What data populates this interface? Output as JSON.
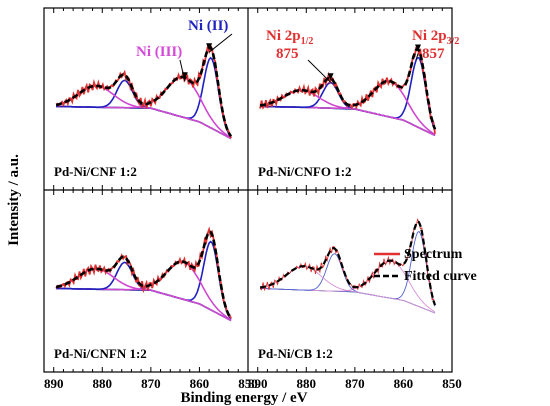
{
  "figure": {
    "xlabel": "Binding energy / eV",
    "ylabel": "Intensity / a.u."
  },
  "chart_data": {
    "type": "line",
    "xlabel": "Binding energy / eV",
    "ylabel": "Intensity / a.u.",
    "xlim": [
      892,
      850
    ],
    "x_ticks": [
      890,
      880,
      870,
      860,
      850
    ],
    "x_reversed": true,
    "panels": [
      {
        "label": "Pd-Ni/CNF 1:2",
        "annotations": [
          {
            "text": "Ni (II)",
            "color": "#1f24c0",
            "points_to": 858
          },
          {
            "text": "Ni (III)",
            "color": "#d54ad8",
            "points_to": 863
          }
        ],
        "baseline": [
          [
            889,
            0.08
          ],
          [
            880,
            0.07
          ],
          [
            870,
            0.06
          ],
          [
            860,
            -0.1
          ],
          [
            852,
            -0.34
          ]
        ],
        "peaks": [
          {
            "center": 857.6,
            "width": 1.5,
            "height": 0.82,
            "color": "#2020c0"
          },
          {
            "center": 863.3,
            "width": 3.4,
            "height": 0.47,
            "color": "#d048d0"
          },
          {
            "center": 875.4,
            "width": 1.6,
            "height": 0.32,
            "color": "#2020c0"
          },
          {
            "center": 881.3,
            "width": 3.6,
            "height": 0.25,
            "color": "#d048d0"
          }
        ]
      },
      {
        "label": "Pd-Ni/CNFO 1:2",
        "annotations": [
          {
            "text": "Ni 2p",
            "sub": "1/2",
            "value": "875",
            "color": "#e03030",
            "points_to": 875
          },
          {
            "text": "Ni 2p",
            "sub": "3/2",
            "value": "857",
            "color": "#e03030",
            "points_to": 857
          }
        ],
        "baseline": [
          [
            889,
            0.08
          ],
          [
            880,
            0.07
          ],
          [
            870,
            0.05
          ],
          [
            860,
            -0.08
          ],
          [
            852,
            -0.3
          ]
        ],
        "peaks": [
          {
            "center": 856.9,
            "width": 1.5,
            "height": 0.82,
            "color": "#2020c0"
          },
          {
            "center": 862.8,
            "width": 3.4,
            "height": 0.42,
            "color": "#d048d0"
          },
          {
            "center": 875.0,
            "width": 1.6,
            "height": 0.3,
            "color": "#2020c0"
          },
          {
            "center": 881.0,
            "width": 3.6,
            "height": 0.2,
            "color": "#d048d0"
          }
        ]
      },
      {
        "label": "Pd-Ni/CNFN 1:2",
        "annotations": [],
        "baseline": [
          [
            889,
            0.08
          ],
          [
            880,
            0.07
          ],
          [
            870,
            0.06
          ],
          [
            860,
            -0.1
          ],
          [
            852,
            -0.34
          ]
        ],
        "peaks": [
          {
            "center": 857.6,
            "width": 1.5,
            "height": 0.8,
            "color": "#2020c0"
          },
          {
            "center": 863.3,
            "width": 3.4,
            "height": 0.44,
            "color": "#d048d0"
          },
          {
            "center": 875.4,
            "width": 1.6,
            "height": 0.32,
            "color": "#2020c0"
          },
          {
            "center": 881.3,
            "width": 3.6,
            "height": 0.24,
            "color": "#d048d0"
          }
        ]
      },
      {
        "label": "Pd-Ni/CB 1:2",
        "annotations": [],
        "thin": true,
        "baseline": [
          [
            889,
            0.08
          ],
          [
            880,
            0.06
          ],
          [
            870,
            0.04
          ],
          [
            860,
            -0.06
          ],
          [
            852,
            -0.24
          ]
        ],
        "peaks": [
          {
            "center": 856.8,
            "width": 1.5,
            "height": 0.88,
            "color": "#5060d0"
          },
          {
            "center": 862.5,
            "width": 3.4,
            "height": 0.44,
            "color": "#d890d8"
          },
          {
            "center": 874.2,
            "width": 1.6,
            "height": 0.44,
            "color": "#5060d0"
          },
          {
            "center": 880.5,
            "width": 3.6,
            "height": 0.28,
            "color": "#d890d8"
          }
        ]
      }
    ],
    "legend": {
      "placement": "right",
      "panel": "Pd-Ni/CB 1:2",
      "entries": [
        {
          "label": "Spectrum",
          "color": "#e03030",
          "style": "solid"
        },
        {
          "label": "Fitted curve",
          "color": "#000000",
          "style": "dashed"
        }
      ]
    },
    "colors": {
      "spectrum": "#e03030",
      "fit": "#000000",
      "background": "#33cc33",
      "ni2": "#1f24c0",
      "ni3": "#d54ad8",
      "label_red": "#e03030"
    }
  }
}
